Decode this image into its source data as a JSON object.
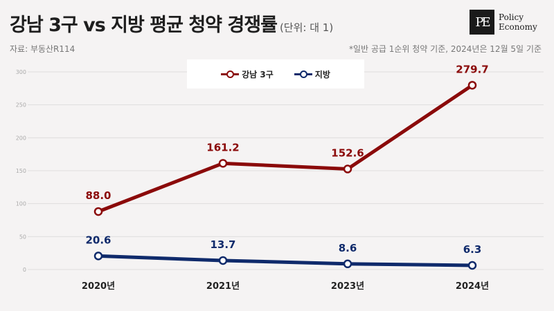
{
  "header": {
    "title": "강남 3구 vs 지방 평균 청약 경쟁률",
    "unit": "(단위: 대 1)",
    "source": "자료: 부동산R114",
    "note": "*일반 공급 1순위 청약 기준, 2024년은 12월 5일 기준"
  },
  "logo": {
    "mark": "PE",
    "line1": "Policy",
    "line2": "Economy"
  },
  "colors": {
    "gangnam": "#8b0a0a",
    "regional": "#0f2a6b",
    "grid": "#dedede",
    "background": "#f5f3f3"
  },
  "chart_data": {
    "type": "line",
    "categories": [
      "2020년",
      "2021년",
      "2023년",
      "2024년"
    ],
    "series": [
      {
        "name": "강남 3구",
        "values": [
          88.0,
          161.2,
          152.6,
          279.7
        ]
      },
      {
        "name": "지방",
        "values": [
          20.6,
          13.7,
          8.6,
          6.3
        ]
      }
    ],
    "data_labels": [
      [
        "88.0",
        "161.2",
        "152.6",
        "279.7"
      ],
      [
        "20.6",
        "13.7",
        "8.6",
        "6.3"
      ]
    ],
    "y_ticks": [
      "0",
      "50",
      "100",
      "150",
      "200",
      "250",
      "300"
    ],
    "ylim": [
      0,
      300
    ],
    "grid": true,
    "legend_position": "top-center",
    "title": "강남 3구 vs 지방 평균 청약 경쟁률",
    "xlabel": "",
    "ylabel": ""
  }
}
